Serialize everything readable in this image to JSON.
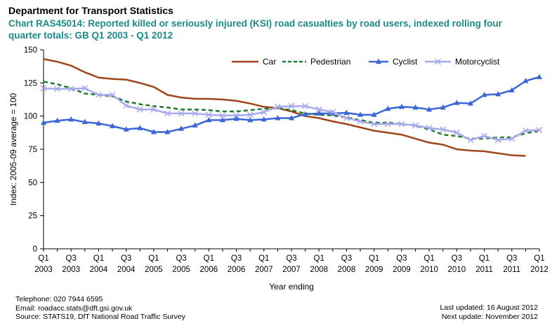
{
  "header": {
    "department": "Department for Transport Statistics",
    "chart_title": "Chart RAS45014: Reported killed or seriously injured (KSI) road casualties by road users, indexed rolling four quarter totals: GB Q1 2003 - Q1 2012"
  },
  "colors": {
    "title": "#1a8a8a",
    "car": "#a0451a",
    "pedestrian": "#1f7a2e",
    "cyclist": "#3a66d6",
    "motorcyclist": "#a8a8ee",
    "axis": "#000000"
  },
  "footer": {
    "telephone": "Telephone: 020 7944 6595",
    "email": "Email: roadacc.stats@dft.gsi.gov.uk",
    "source": "Source: STATS19, DfT National Road Traffic Survey",
    "last_updated": "Last updated: 16 August 2012",
    "next_update": "Next update: November 2012"
  },
  "chart_data": {
    "type": "line",
    "xlabel": "Year ending",
    "ylabel": "Index: 2005-09 average = 100",
    "ylim": [
      0,
      150
    ],
    "yticks": [
      0,
      25,
      50,
      75,
      100,
      125,
      150
    ],
    "grid": false,
    "legend_position": "top-right",
    "x_tick_labels": [
      {
        "q": "Q1",
        "y": "2003"
      },
      {
        "q": "Q3",
        "y": "2003"
      },
      {
        "q": "Q1",
        "y": "2004"
      },
      {
        "q": "Q3",
        "y": "2004"
      },
      {
        "q": "Q1",
        "y": "2005"
      },
      {
        "q": "Q3",
        "y": "2005"
      },
      {
        "q": "Q1",
        "y": "2006"
      },
      {
        "q": "Q3",
        "y": "2006"
      },
      {
        "q": "Q1",
        "y": "2007"
      },
      {
        "q": "Q3",
        "y": "2007"
      },
      {
        "q": "Q1",
        "y": "2008"
      },
      {
        "q": "Q3",
        "y": "2008"
      },
      {
        "q": "Q1",
        "y": "2009"
      },
      {
        "q": "Q3",
        "y": "2009"
      },
      {
        "q": "Q1",
        "y": "2010"
      },
      {
        "q": "Q3",
        "y": "2010"
      },
      {
        "q": "Q1",
        "y": "2011"
      },
      {
        "q": "Q3",
        "y": "2011"
      },
      {
        "q": "Q1",
        "y": "2012"
      }
    ],
    "x": [
      "Q1 2003",
      "Q2 2003",
      "Q3 2003",
      "Q4 2003",
      "Q1 2004",
      "Q2 2004",
      "Q3 2004",
      "Q4 2004",
      "Q1 2005",
      "Q2 2005",
      "Q3 2005",
      "Q4 2005",
      "Q1 2006",
      "Q2 2006",
      "Q3 2006",
      "Q4 2006",
      "Q1 2007",
      "Q2 2007",
      "Q3 2007",
      "Q4 2007",
      "Q1 2008",
      "Q2 2008",
      "Q3 2008",
      "Q4 2008",
      "Q1 2009",
      "Q2 2009",
      "Q3 2009",
      "Q4 2009",
      "Q1 2010",
      "Q2 2010",
      "Q3 2010",
      "Q4 2010",
      "Q1 2011",
      "Q2 2011",
      "Q3 2011",
      "Q4 2011",
      "Q1 2012"
    ],
    "series": [
      {
        "name": "Car",
        "style": "solid",
        "marker": "none",
        "color_key": "car",
        "values": [
          143,
          141,
          138,
          133,
          129,
          128,
          127.5,
          125,
          122,
          116,
          114,
          113,
          113,
          112.5,
          111.5,
          109.5,
          107,
          106,
          103.5,
          100,
          98.5,
          96,
          94,
          91.5,
          89,
          87.5,
          86,
          83,
          80,
          78.5,
          75,
          74,
          73.5,
          72,
          70.5,
          70,
          null
        ]
      },
      {
        "name": "Pedestrian",
        "style": "dashed",
        "marker": "none",
        "color_key": "pedestrian",
        "values": [
          126,
          124,
          121,
          117,
          116,
          115,
          111,
          109,
          107.5,
          106.5,
          105,
          105,
          104.5,
          103.5,
          103.5,
          104.5,
          105.5,
          106,
          104.5,
          102,
          101,
          100.5,
          99,
          97,
          95,
          95,
          94,
          93,
          90,
          86,
          85,
          83,
          83,
          84,
          84,
          87,
          89
        ]
      },
      {
        "name": "Cyclist",
        "style": "solid",
        "marker": "triangle",
        "color_key": "cyclist",
        "values": [
          95,
          96.5,
          97.5,
          95.5,
          94.5,
          92.5,
          90,
          91,
          88,
          88,
          90.5,
          93,
          97,
          97,
          98,
          97,
          97.5,
          98.5,
          98.5,
          101.5,
          102,
          102,
          102.5,
          101,
          101,
          105.5,
          107,
          106.5,
          105,
          106.5,
          110,
          109.5,
          116,
          116.5,
          119.5,
          126.5,
          129.5
        ]
      },
      {
        "name": "Motorcyclist",
        "style": "solid",
        "marker": "x",
        "color_key": "motorcyclist",
        "values": [
          121,
          120.5,
          120.5,
          121,
          116,
          116,
          108,
          105,
          105,
          102,
          102,
          102,
          101,
          100.5,
          100.5,
          101,
          103,
          107,
          107.5,
          107.5,
          105,
          103,
          98.5,
          96,
          94,
          94,
          94,
          93,
          91,
          90,
          87.5,
          82,
          85,
          82,
          83,
          89,
          89.5
        ]
      }
    ]
  }
}
